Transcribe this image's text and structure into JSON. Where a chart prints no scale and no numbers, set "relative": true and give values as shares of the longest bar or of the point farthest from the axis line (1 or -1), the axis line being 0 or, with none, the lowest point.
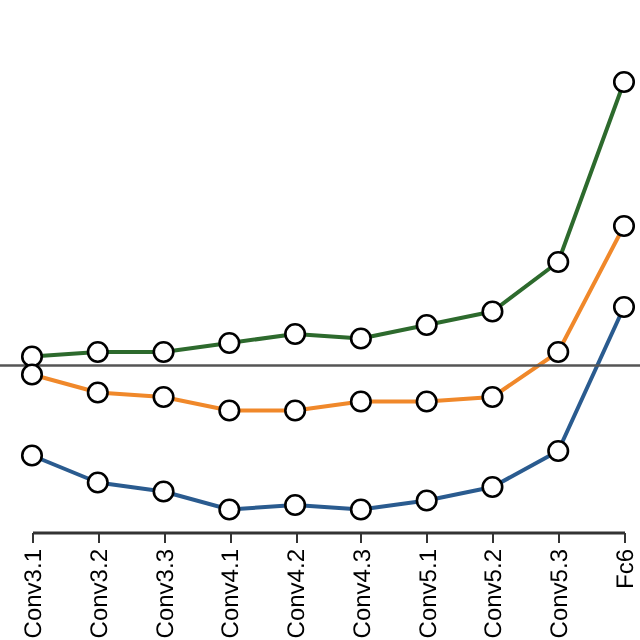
{
  "chart_data": {
    "type": "line",
    "relative": true,
    "marker": "circle",
    "categories": [
      "Conv3.1",
      "Conv3.2",
      "Conv3.3",
      "Conv4.1",
      "Conv4.2",
      "Conv4.3",
      "Conv5.1",
      "Conv5.2",
      "Conv5.3",
      "Fc6"
    ],
    "series": [
      {
        "color": "#2d6a2d",
        "values": [
          0.39,
          0.4,
          0.4,
          0.42,
          0.44,
          0.43,
          0.46,
          0.49,
          0.6,
          1
        ]
      },
      {
        "color": "#f0882a",
        "values": [
          0.35,
          0.31,
          0.3,
          0.27,
          0.27,
          0.29,
          0.29,
          0.3,
          0.4,
          0.68
        ]
      },
      {
        "color": "#2a5b8f",
        "values": [
          0.17,
          0.11,
          0.09,
          0.05,
          0.06,
          0.05,
          0.07,
          0.1,
          0.18,
          0.5
        ]
      }
    ],
    "ref_lines": [
      {
        "axis": "y",
        "value": 0.37,
        "color": "#555555"
      }
    ]
  }
}
